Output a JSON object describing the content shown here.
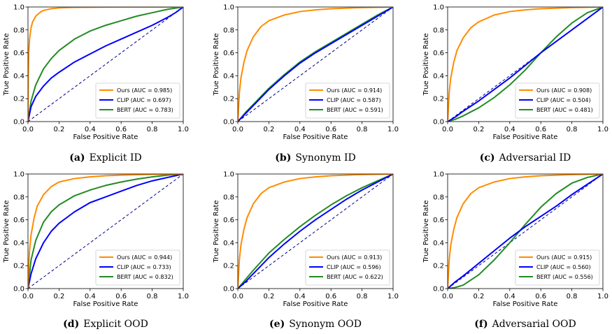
{
  "chart_data": [
    {
      "type": "line",
      "caption_label": "(a)",
      "caption_text": "Explicit ID",
      "xlabel": "False Positive Rate",
      "ylabel": "True Positive Rate",
      "xlim": [
        0.0,
        1.0
      ],
      "ylim": [
        0.0,
        1.0
      ],
      "xticks": [
        "0.0",
        "0.2",
        "0.4",
        "0.6",
        "0.8",
        "1.0"
      ],
      "yticks": [
        "0.0",
        "0.2",
        "0.4",
        "0.6",
        "0.8",
        "1.0"
      ],
      "legend_position": "lower right",
      "grid": false,
      "reference_line": {
        "x": [
          0,
          1
        ],
        "y": [
          0,
          1
        ],
        "color": "#00008b",
        "style": "dashed"
      },
      "series": [
        {
          "name": "Ours (AUC = 0.985)",
          "color": "#ff8c00",
          "x": [
            0,
            0.002,
            0.005,
            0.01,
            0.02,
            0.03,
            0.05,
            0.08,
            0.1,
            0.15,
            0.2,
            0.3,
            0.5,
            0.7,
            1.0
          ],
          "y": [
            0,
            0.4,
            0.6,
            0.72,
            0.82,
            0.87,
            0.92,
            0.955,
            0.97,
            0.985,
            0.992,
            0.997,
            0.999,
            1.0,
            1.0
          ]
        },
        {
          "name": "CLIP (AUC = 0.697)",
          "color": "#0000ff",
          "x": [
            0,
            0.02,
            0.05,
            0.1,
            0.15,
            0.2,
            0.3,
            0.4,
            0.5,
            0.6,
            0.7,
            0.8,
            0.9,
            0.95,
            1.0
          ],
          "y": [
            0,
            0.13,
            0.22,
            0.31,
            0.38,
            0.43,
            0.52,
            0.59,
            0.66,
            0.72,
            0.78,
            0.84,
            0.91,
            0.95,
            1.0
          ]
        },
        {
          "name": "BERT (AUC = 0.783)",
          "color": "#228b22",
          "x": [
            0,
            0.02,
            0.05,
            0.1,
            0.15,
            0.2,
            0.3,
            0.4,
            0.5,
            0.6,
            0.7,
            0.8,
            0.9,
            1.0
          ],
          "y": [
            0,
            0.18,
            0.32,
            0.46,
            0.55,
            0.62,
            0.72,
            0.79,
            0.84,
            0.88,
            0.92,
            0.95,
            0.98,
            1.0
          ]
        }
      ]
    },
    {
      "type": "line",
      "caption_label": "(b)",
      "caption_text": "Synonym ID",
      "xlabel": "False Positive Rate",
      "ylabel": "True Positive Rate",
      "xlim": [
        0.0,
        1.0
      ],
      "ylim": [
        0.0,
        1.0
      ],
      "xticks": [
        "0.0",
        "0.2",
        "0.4",
        "0.6",
        "0.8",
        "1.0"
      ],
      "yticks": [
        "0.0",
        "0.2",
        "0.4",
        "0.6",
        "0.8",
        "1.0"
      ],
      "legend_position": "lower right",
      "grid": false,
      "reference_line": {
        "x": [
          0,
          1
        ],
        "y": [
          0,
          1
        ],
        "color": "#00008b",
        "style": "dashed"
      },
      "series": [
        {
          "name": "Ours (AUC = 0.914)",
          "color": "#ff8c00",
          "x": [
            0,
            0.01,
            0.02,
            0.04,
            0.06,
            0.1,
            0.15,
            0.2,
            0.3,
            0.4,
            0.5,
            0.6,
            0.8,
            1.0
          ],
          "y": [
            0,
            0.25,
            0.38,
            0.52,
            0.62,
            0.74,
            0.83,
            0.88,
            0.93,
            0.96,
            0.975,
            0.985,
            0.995,
            1.0
          ]
        },
        {
          "name": "CLIP (AUC = 0.587)",
          "color": "#0000ff",
          "x": [
            0,
            0.05,
            0.1,
            0.2,
            0.3,
            0.4,
            0.5,
            0.6,
            0.7,
            0.8,
            0.9,
            1.0
          ],
          "y": [
            0,
            0.07,
            0.14,
            0.28,
            0.4,
            0.51,
            0.6,
            0.68,
            0.76,
            0.84,
            0.92,
            1.0
          ]
        },
        {
          "name": "BERT (AUC = 0.591)",
          "color": "#228b22",
          "x": [
            0,
            0.05,
            0.1,
            0.2,
            0.3,
            0.4,
            0.5,
            0.6,
            0.7,
            0.8,
            0.9,
            1.0
          ],
          "y": [
            0,
            0.08,
            0.15,
            0.29,
            0.41,
            0.52,
            0.61,
            0.69,
            0.77,
            0.85,
            0.93,
            1.0
          ]
        }
      ]
    },
    {
      "type": "line",
      "caption_label": "(c)",
      "caption_text": "Adversarial ID",
      "xlabel": "False Positive Rate",
      "ylabel": "True Positive Rate",
      "xlim": [
        0.0,
        1.0
      ],
      "ylim": [
        0.0,
        1.0
      ],
      "xticks": [
        "0.0",
        "0.2",
        "0.4",
        "0.6",
        "0.8",
        "1.0"
      ],
      "yticks": [
        "0.0",
        "0.2",
        "0.4",
        "0.6",
        "0.8",
        "1.0"
      ],
      "legend_position": "lower right",
      "grid": false,
      "reference_line": {
        "x": [
          0,
          1
        ],
        "y": [
          0,
          1
        ],
        "color": "#00008b",
        "style": "dashed"
      },
      "series": [
        {
          "name": "Ours (AUC = 0.908)",
          "color": "#ff8c00",
          "x": [
            0,
            0.01,
            0.02,
            0.04,
            0.06,
            0.1,
            0.15,
            0.2,
            0.3,
            0.4,
            0.5,
            0.6,
            0.8,
            1.0
          ],
          "y": [
            0,
            0.25,
            0.38,
            0.52,
            0.62,
            0.73,
            0.82,
            0.87,
            0.93,
            0.96,
            0.975,
            0.985,
            0.995,
            1.0
          ]
        },
        {
          "name": "CLIP (AUC = 0.504)",
          "color": "#0000ff",
          "x": [
            0,
            0.05,
            0.1,
            0.2,
            0.3,
            0.4,
            0.5,
            0.6,
            0.7,
            0.8,
            0.9,
            1.0
          ],
          "y": [
            0,
            0.04,
            0.09,
            0.18,
            0.28,
            0.38,
            0.49,
            0.6,
            0.7,
            0.8,
            0.9,
            1.0
          ]
        },
        {
          "name": "BERT (AUC = 0.481)",
          "color": "#228b22",
          "x": [
            0,
            0.05,
            0.1,
            0.2,
            0.3,
            0.4,
            0.5,
            0.6,
            0.7,
            0.8,
            0.9,
            1.0
          ],
          "y": [
            0,
            0.02,
            0.05,
            0.12,
            0.21,
            0.32,
            0.45,
            0.6,
            0.74,
            0.86,
            0.95,
            1.0
          ]
        }
      ]
    },
    {
      "type": "line",
      "caption_label": "(d)",
      "caption_text": "Explicit OOD",
      "xlabel": "False Positive Rate",
      "ylabel": "True Positive Rate",
      "xlim": [
        0.0,
        1.0
      ],
      "ylim": [
        0.0,
        1.0
      ],
      "xticks": [
        "0.0",
        "0.2",
        "0.4",
        "0.6",
        "0.8",
        "1.0"
      ],
      "yticks": [
        "0.0",
        "0.2",
        "0.4",
        "0.6",
        "0.8",
        "1.0"
      ],
      "legend_position": "lower right",
      "grid": false,
      "reference_line": {
        "x": [
          0,
          1
        ],
        "y": [
          0,
          1
        ],
        "color": "#00008b",
        "style": "dashed"
      },
      "series": [
        {
          "name": "Ours (AUC = 0.944)",
          "color": "#ff8c00",
          "x": [
            0,
            0.005,
            0.01,
            0.02,
            0.04,
            0.06,
            0.1,
            0.15,
            0.2,
            0.3,
            0.4,
            0.5,
            0.6,
            0.8,
            1.0
          ],
          "y": [
            0,
            0.2,
            0.33,
            0.47,
            0.62,
            0.72,
            0.82,
            0.89,
            0.93,
            0.96,
            0.975,
            0.985,
            0.99,
            0.997,
            1.0
          ]
        },
        {
          "name": "CLIP (AUC = 0.733)",
          "color": "#0000ff",
          "x": [
            0,
            0.02,
            0.05,
            0.1,
            0.15,
            0.2,
            0.3,
            0.4,
            0.5,
            0.6,
            0.7,
            0.8,
            0.9,
            1.0
          ],
          "y": [
            0,
            0.13,
            0.26,
            0.4,
            0.5,
            0.57,
            0.67,
            0.75,
            0.8,
            0.85,
            0.9,
            0.94,
            0.97,
            1.0
          ]
        },
        {
          "name": "BERT (AUC = 0.832)",
          "color": "#228b22",
          "x": [
            0,
            0.02,
            0.05,
            0.1,
            0.15,
            0.2,
            0.3,
            0.4,
            0.5,
            0.6,
            0.7,
            0.8,
            0.9,
            1.0
          ],
          "y": [
            0,
            0.25,
            0.42,
            0.58,
            0.67,
            0.73,
            0.81,
            0.86,
            0.9,
            0.93,
            0.955,
            0.975,
            0.99,
            1.0
          ]
        }
      ]
    },
    {
      "type": "line",
      "caption_label": "(e)",
      "caption_text": "Synonym OOD",
      "xlabel": "False Positive Rate",
      "ylabel": "True Positive Rate",
      "xlim": [
        0.0,
        1.0
      ],
      "ylim": [
        0.0,
        1.0
      ],
      "xticks": [
        "0.0",
        "0.2",
        "0.4",
        "0.6",
        "0.8",
        "1.0"
      ],
      "yticks": [
        "0.0",
        "0.2",
        "0.4",
        "0.6",
        "0.8",
        "1.0"
      ],
      "legend_position": "lower right",
      "grid": false,
      "reference_line": {
        "x": [
          0,
          1
        ],
        "y": [
          0,
          1
        ],
        "color": "#00008b",
        "style": "dashed"
      },
      "series": [
        {
          "name": "Ours (AUC = 0.913)",
          "color": "#ff8c00",
          "x": [
            0,
            0.01,
            0.02,
            0.04,
            0.06,
            0.1,
            0.15,
            0.2,
            0.3,
            0.4,
            0.5,
            0.6,
            0.8,
            1.0
          ],
          "y": [
            0,
            0.25,
            0.38,
            0.52,
            0.62,
            0.74,
            0.83,
            0.88,
            0.93,
            0.96,
            0.975,
            0.985,
            0.995,
            1.0
          ]
        },
        {
          "name": "CLIP (AUC = 0.596)",
          "color": "#0000ff",
          "x": [
            0,
            0.05,
            0.1,
            0.2,
            0.3,
            0.4,
            0.5,
            0.6,
            0.7,
            0.8,
            0.9,
            1.0
          ],
          "y": [
            0,
            0.06,
            0.13,
            0.27,
            0.39,
            0.5,
            0.6,
            0.69,
            0.78,
            0.86,
            0.93,
            1.0
          ]
        },
        {
          "name": "BERT (AUC = 0.622)",
          "color": "#228b22",
          "x": [
            0,
            0.05,
            0.1,
            0.2,
            0.3,
            0.4,
            0.5,
            0.6,
            0.7,
            0.8,
            0.9,
            1.0
          ],
          "y": [
            0,
            0.08,
            0.16,
            0.31,
            0.43,
            0.54,
            0.64,
            0.73,
            0.81,
            0.88,
            0.94,
            1.0
          ]
        }
      ]
    },
    {
      "type": "line",
      "caption_label": "(f)",
      "caption_text": "Adversarial OOD",
      "xlabel": "False Positive Rate",
      "ylabel": "True Positive Rate",
      "xlim": [
        0.0,
        1.0
      ],
      "ylim": [
        0.0,
        1.0
      ],
      "xticks": [
        "0.0",
        "0.2",
        "0.4",
        "0.6",
        "0.8",
        "1.0"
      ],
      "yticks": [
        "0.0",
        "0.2",
        "0.4",
        "0.6",
        "0.8",
        "1.0"
      ],
      "legend_position": "lower right",
      "grid": false,
      "reference_line": {
        "x": [
          0,
          1
        ],
        "y": [
          0,
          1
        ],
        "color": "#00008b",
        "style": "dashed"
      },
      "series": [
        {
          "name": "Ours (AUC = 0.915)",
          "color": "#ff8c00",
          "x": [
            0,
            0.01,
            0.02,
            0.04,
            0.06,
            0.1,
            0.15,
            0.2,
            0.3,
            0.4,
            0.5,
            0.6,
            0.8,
            1.0
          ],
          "y": [
            0,
            0.25,
            0.38,
            0.52,
            0.62,
            0.74,
            0.83,
            0.88,
            0.93,
            0.96,
            0.975,
            0.985,
            0.995,
            1.0
          ]
        },
        {
          "name": "CLIP (AUC = 0.560)",
          "color": "#0000ff",
          "x": [
            0,
            0.05,
            0.1,
            0.2,
            0.3,
            0.4,
            0.5,
            0.6,
            0.7,
            0.8,
            0.9,
            1.0
          ],
          "y": [
            0,
            0.06,
            0.11,
            0.22,
            0.33,
            0.44,
            0.54,
            0.63,
            0.72,
            0.82,
            0.91,
            1.0
          ]
        },
        {
          "name": "BERT (AUC = 0.556)",
          "color": "#228b22",
          "x": [
            0,
            0.05,
            0.1,
            0.2,
            0.3,
            0.4,
            0.5,
            0.6,
            0.7,
            0.8,
            0.9,
            1.0
          ],
          "y": [
            0,
            0.01,
            0.03,
            0.12,
            0.25,
            0.4,
            0.56,
            0.71,
            0.83,
            0.92,
            0.97,
            1.0
          ]
        }
      ]
    }
  ]
}
